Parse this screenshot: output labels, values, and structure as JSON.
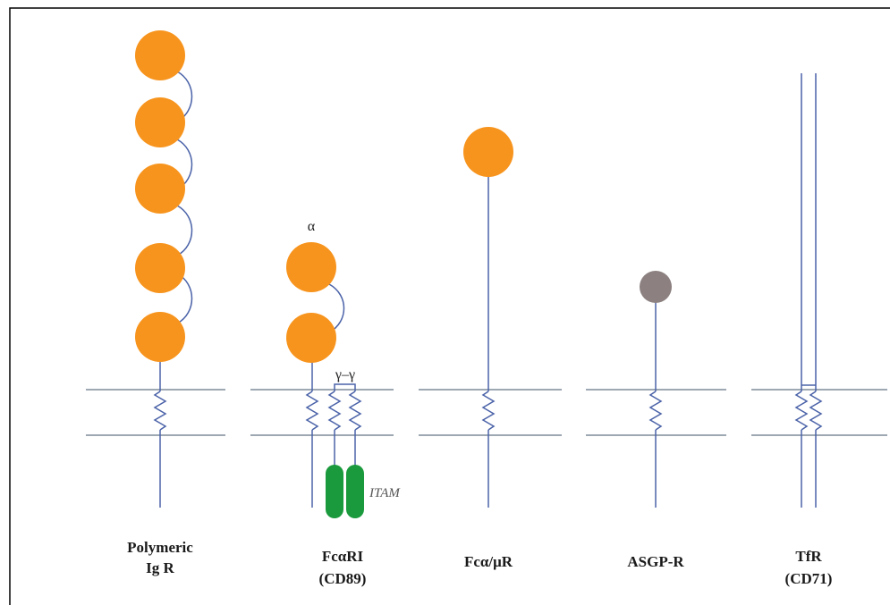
{
  "colors": {
    "ig_domain": "#F7941D",
    "asgp_domain": "#8C8080",
    "itam": "#1A9A3C",
    "membrane": "#7F8B9A",
    "chain": "#4A62A8",
    "frame": "#000000"
  },
  "labels": {
    "alpha": "α",
    "gamma_pair": "γ–γ",
    "itam": "ITAM"
  },
  "receptors": [
    {
      "line1": "Polymeric",
      "line2": "Ig R",
      "ig_domains": 5
    },
    {
      "line1": "FcαRI",
      "line2": "(CD89)",
      "ig_domains": 2
    },
    {
      "line1": "Fcα/μR",
      "line2": "",
      "ig_domains": 1
    },
    {
      "line1": "ASGP-R",
      "line2": "",
      "ig_domains": 0
    },
    {
      "line1": "TfR",
      "line2": "(CD71)",
      "ig_domains": 0
    }
  ]
}
